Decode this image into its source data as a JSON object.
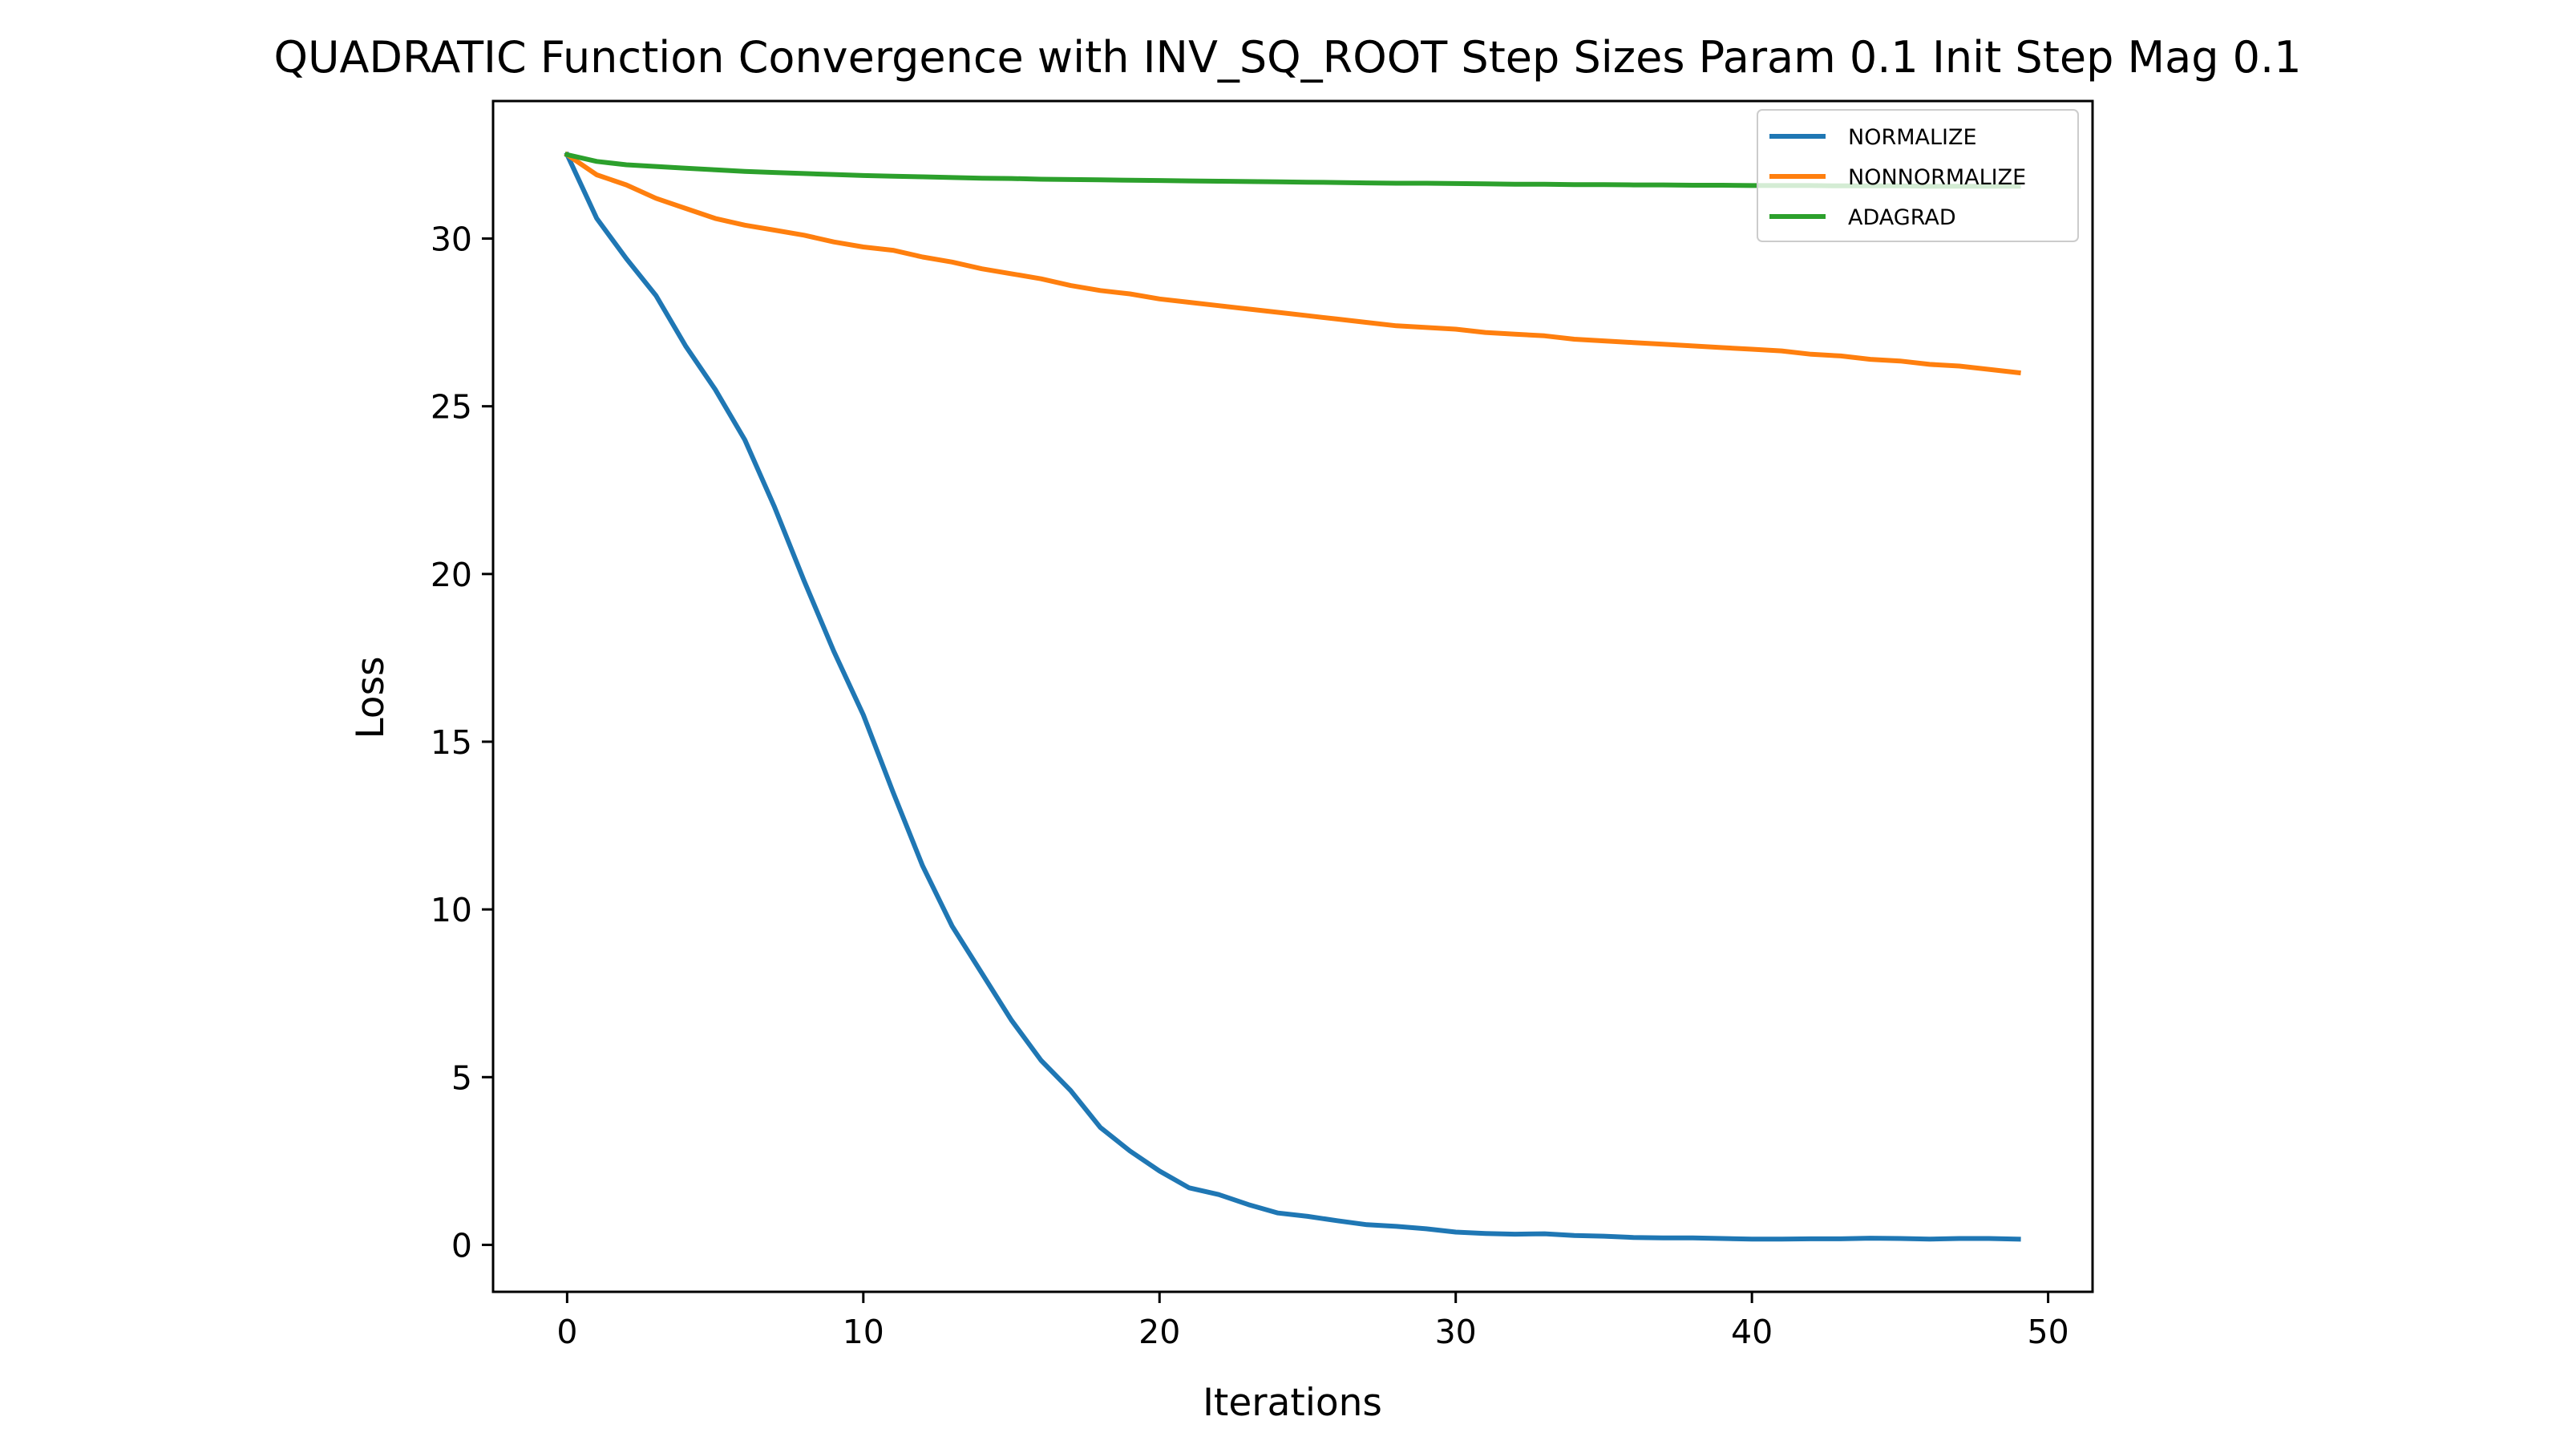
{
  "chart_data": {
    "type": "line",
    "title": "QUADRATIC Function Convergence with INV_SQ_ROOT Step Sizes Param 0.1 Init Step Mag 0.1",
    "xlabel": "Iterations",
    "ylabel": "Loss",
    "xlim": [
      -2.5,
      51.5
    ],
    "ylim": [
      -1.4,
      34.1
    ],
    "xticks": [
      0,
      10,
      20,
      30,
      40,
      50
    ],
    "yticks": [
      0,
      5,
      10,
      15,
      20,
      25,
      30
    ],
    "grid": false,
    "legend_position": "top-right",
    "x": [
      0,
      1,
      2,
      3,
      4,
      5,
      6,
      7,
      8,
      9,
      10,
      11,
      12,
      13,
      14,
      15,
      16,
      17,
      18,
      19,
      20,
      21,
      22,
      23,
      24,
      25,
      26,
      27,
      28,
      29,
      30,
      31,
      32,
      33,
      34,
      35,
      36,
      37,
      38,
      39,
      40,
      41,
      42,
      43,
      44,
      45,
      46,
      47,
      48,
      49
    ],
    "series": [
      {
        "name": "NORMALIZE",
        "color": "#1f77b4",
        "values": [
          32.5,
          30.6,
          29.4,
          28.3,
          26.8,
          25.5,
          24.0,
          22.0,
          19.8,
          17.7,
          15.8,
          13.5,
          11.3,
          9.5,
          8.1,
          6.7,
          5.5,
          4.6,
          3.5,
          2.8,
          2.2,
          1.7,
          1.5,
          1.2,
          0.95,
          0.85,
          0.72,
          0.6,
          0.55,
          0.48,
          0.38,
          0.34,
          0.32,
          0.33,
          0.28,
          0.26,
          0.22,
          0.21,
          0.21,
          0.19,
          0.17,
          0.17,
          0.18,
          0.18,
          0.2,
          0.19,
          0.17,
          0.19,
          0.19,
          0.17
        ]
      },
      {
        "name": "NONNORMALIZE",
        "color": "#ff7f0e",
        "values": [
          32.5,
          31.9,
          31.6,
          31.2,
          30.9,
          30.6,
          30.4,
          30.25,
          30.1,
          29.9,
          29.75,
          29.65,
          29.45,
          29.3,
          29.1,
          28.95,
          28.8,
          28.6,
          28.45,
          28.35,
          28.2,
          28.1,
          28.0,
          27.9,
          27.8,
          27.7,
          27.6,
          27.5,
          27.4,
          27.35,
          27.3,
          27.2,
          27.15,
          27.1,
          27.0,
          26.95,
          26.9,
          26.85,
          26.8,
          26.75,
          26.7,
          26.65,
          26.55,
          26.5,
          26.4,
          26.35,
          26.25,
          26.2,
          26.1,
          26.0
        ]
      },
      {
        "name": "ADAGRAD",
        "color": "#2ca02c",
        "values": [
          32.5,
          32.3,
          32.2,
          32.15,
          32.1,
          32.05,
          32.0,
          31.97,
          31.94,
          31.91,
          31.88,
          31.86,
          31.84,
          31.82,
          31.8,
          31.79,
          31.77,
          31.76,
          31.75,
          31.74,
          31.73,
          31.72,
          31.71,
          31.7,
          31.69,
          31.68,
          31.67,
          31.66,
          31.65,
          31.65,
          31.64,
          31.63,
          31.62,
          31.62,
          31.61,
          31.61,
          31.6,
          31.6,
          31.59,
          31.59,
          31.58,
          31.58,
          31.58,
          31.57,
          31.57,
          31.57,
          31.56,
          31.56,
          31.56,
          31.56
        ]
      }
    ]
  }
}
